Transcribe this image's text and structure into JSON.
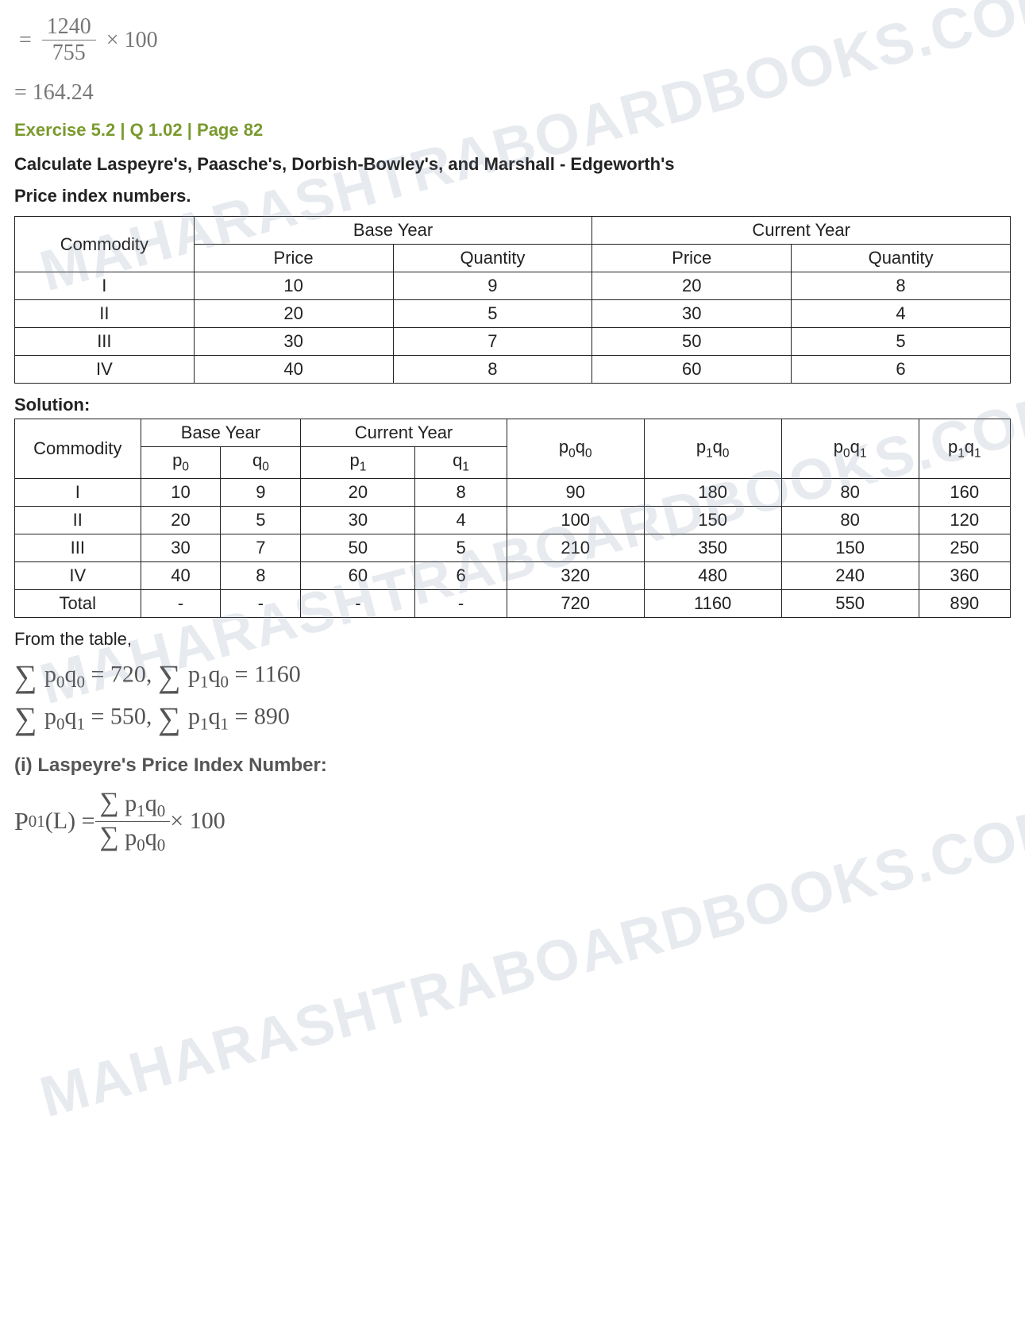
{
  "watermark_text": "MAHARASHTRABOARDBOOKS.COM",
  "top_calc": {
    "numerator": "1240",
    "denominator": "755",
    "times": "× 100",
    "result": "= 164.24"
  },
  "exercise_line": "Exercise 5.2 | Q 1.02 | Page 82",
  "question_line1": "Calculate Laspeyre's, Paasche's, Dorbish-Bowley's, and Marshall - Edgeworth's",
  "question_line2": "Price index numbers.",
  "table1": {
    "headers": {
      "commodity": "Commodity",
      "base_year": "Base Year",
      "current_year": "Current Year",
      "price": "Price",
      "quantity": "Quantity"
    },
    "rows": [
      {
        "c": "I",
        "bp": "10",
        "bq": "9",
        "cp": "20",
        "cq": "8"
      },
      {
        "c": "II",
        "bp": "20",
        "bq": "5",
        "cp": "30",
        "cq": "4"
      },
      {
        "c": "III",
        "bp": "30",
        "bq": "7",
        "cp": "50",
        "cq": "5"
      },
      {
        "c": "IV",
        "bp": "40",
        "bq": "8",
        "cp": "60",
        "cq": "6"
      }
    ]
  },
  "solution_label": "Solution:",
  "table2": {
    "headers": {
      "commodity": "Commodity",
      "base_year": "Base Year",
      "current_year": "Current Year",
      "p0": "p",
      "p0s": "0",
      "q0": "q",
      "q0s": "0",
      "p1": "p",
      "p1s": "1",
      "q1": "q",
      "q1s": "1",
      "p0q0": "p",
      "p0q0a": "0",
      "p0q0b": "q",
      "p0q0c": "0",
      "p1q0": "p",
      "p1q0a": "1",
      "p1q0b": "q",
      "p1q0c": "0",
      "p0q1": "p",
      "p0q1a": "0",
      "p0q1b": "q",
      "p0q1c": "1",
      "p1q1": "p",
      "p1q1a": "1",
      "p1q1b": "q",
      "p1q1c": "1",
      "total": "Total",
      "dash": "-"
    },
    "rows": [
      {
        "c": "I",
        "p0": "10",
        "q0": "9",
        "p1": "20",
        "q1": "8",
        "a": "90",
        "b": "180",
        "d": "80",
        "e": "160"
      },
      {
        "c": "II",
        "p0": "20",
        "q0": "5",
        "p1": "30",
        "q1": "4",
        "a": "100",
        "b": "150",
        "d": "80",
        "e": "120"
      },
      {
        "c": "III",
        "p0": "30",
        "q0": "7",
        "p1": "50",
        "q1": "5",
        "a": "210",
        "b": "350",
        "d": "150",
        "e": "250"
      },
      {
        "c": "IV",
        "p0": "40",
        "q0": "8",
        "p1": "60",
        "q1": "6",
        "a": "320",
        "b": "480",
        "d": "240",
        "e": "360"
      }
    ],
    "totals": {
      "a": "720",
      "b": "1160",
      "d": "550",
      "e": "890"
    }
  },
  "from_table": "From the table,",
  "sums": {
    "s1a": "p",
    "s1as": "0",
    "s1b": "q",
    "s1bs": "0",
    "s1eq": " = 720, ",
    "s2a": "p",
    "s2as": "1",
    "s2b": "q",
    "s2bs": "0",
    "s2eq": " = 1160",
    "s3a": "p",
    "s3as": "0",
    "s3b": "q",
    "s3bs": "1",
    "s3eq": " = 550, ",
    "s4a": "p",
    "s4as": "1",
    "s4b": "q",
    "s4bs": "1",
    "s4eq": " = 890"
  },
  "sub_heading": "(i) Laspeyre's Price Index Number:",
  "formula": {
    "lhs1": "P",
    "lhs_sub": "01",
    "lhs2": "(L) = ",
    "num1": "p",
    "num1s": "1",
    "num2": "q",
    "num2s": "0",
    "den1": "p",
    "den1s": "0",
    "den2": "q",
    "den2s": "0",
    "tail": " × 100"
  }
}
